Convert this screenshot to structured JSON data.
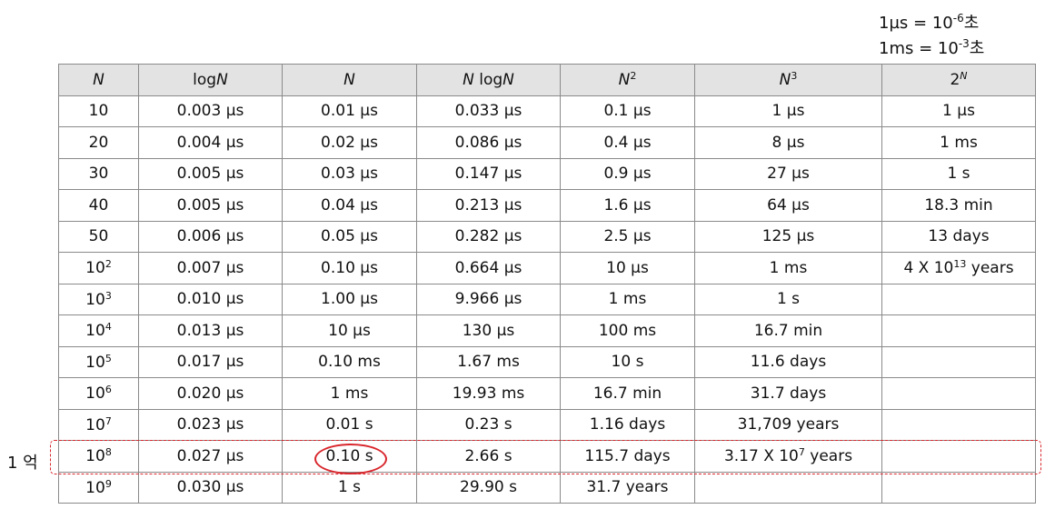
{
  "notes": {
    "us_line": {
      "lhs": "1µs",
      "eq": " = 10",
      "exp": "-6",
      "unit": "초"
    },
    "ms_line": {
      "lhs": "1ms",
      "eq": " = 10",
      "exp": "-3",
      "unit": "초"
    }
  },
  "table": {
    "headers": [
      {
        "base": "N",
        "pre": "",
        "sup": ""
      },
      {
        "base": "N",
        "pre": "log",
        "sup": ""
      },
      {
        "base": "N",
        "pre": "",
        "sup": ""
      },
      {
        "base": "log",
        "pre": "N ",
        "sup": ""
      },
      {
        "base": "N",
        "pre": "",
        "sup": "2"
      },
      {
        "base": "N",
        "pre": "",
        "sup": "3"
      },
      {
        "base": "2",
        "pre": "",
        "sup": "N"
      }
    ],
    "rows": [
      {
        "n_base": "10",
        "n_exp": "",
        "cells": [
          "0.003 µs",
          "0.01 µs",
          "0.033 µs",
          "0.1 µs",
          "1 µs",
          "1 µs"
        ]
      },
      {
        "n_base": "20",
        "n_exp": "",
        "cells": [
          "0.004 µs",
          "0.02 µs",
          "0.086 µs",
          "0.4 µs",
          "8 µs",
          "1 ms"
        ]
      },
      {
        "n_base": "30",
        "n_exp": "",
        "cells": [
          "0.005 µs",
          "0.03 µs",
          "0.147 µs",
          "0.9 µs",
          "27 µs",
          "1 s"
        ]
      },
      {
        "n_base": "40",
        "n_exp": "",
        "cells": [
          "0.005 µs",
          "0.04 µs",
          "0.213 µs",
          "1.6 µs",
          "64 µs",
          "18.3 min"
        ]
      },
      {
        "n_base": "50",
        "n_exp": "",
        "cells": [
          "0.006 µs",
          "0.05 µs",
          "0.282 µs",
          "2.5 µs",
          "125 µs",
          "13 days"
        ]
      },
      {
        "n_base": "10",
        "n_exp": "2",
        "cells": [
          "0.007 µs",
          "0.10 µs",
          "0.664 µs",
          "10 µs",
          "1 ms",
          {
            "pre": "4 X 10",
            "exp": "13",
            "post": " years"
          }
        ]
      },
      {
        "n_base": "10",
        "n_exp": "3",
        "cells": [
          "0.010 µs",
          "1.00 µs",
          "9.966 µs",
          "1 ms",
          "1 s",
          ""
        ]
      },
      {
        "n_base": "10",
        "n_exp": "4",
        "cells": [
          "0.013 µs",
          "10 µs",
          "130 µs",
          "100 ms",
          "16.7 min",
          ""
        ]
      },
      {
        "n_base": "10",
        "n_exp": "5",
        "cells": [
          "0.017 µs",
          "0.10 ms",
          "1.67 ms",
          "10 s",
          "11.6 days",
          ""
        ]
      },
      {
        "n_base": "10",
        "n_exp": "6",
        "cells": [
          "0.020 µs",
          "1 ms",
          "19.93 ms",
          "16.7 min",
          "31.7 days",
          ""
        ]
      },
      {
        "n_base": "10",
        "n_exp": "7",
        "cells": [
          "0.023 µs",
          "0.01 s",
          "0.23 s",
          "1.16 days",
          "31,709 years",
          ""
        ]
      },
      {
        "n_base": "10",
        "n_exp": "8",
        "cells": [
          "0.027 µs",
          "0.10 s",
          "2.66 s",
          "115.7 days",
          {
            "pre": "3.17 X 10",
            "exp": "7",
            "post": " years"
          },
          ""
        ]
      },
      {
        "n_base": "10",
        "n_exp": "9",
        "cells": [
          "0.030 µs",
          "1 s",
          "29.90 s",
          "31.7 years",
          "",
          ""
        ]
      }
    ]
  },
  "annotations": {
    "side_label": "1 억",
    "highlight_color": "#d8262c"
  }
}
